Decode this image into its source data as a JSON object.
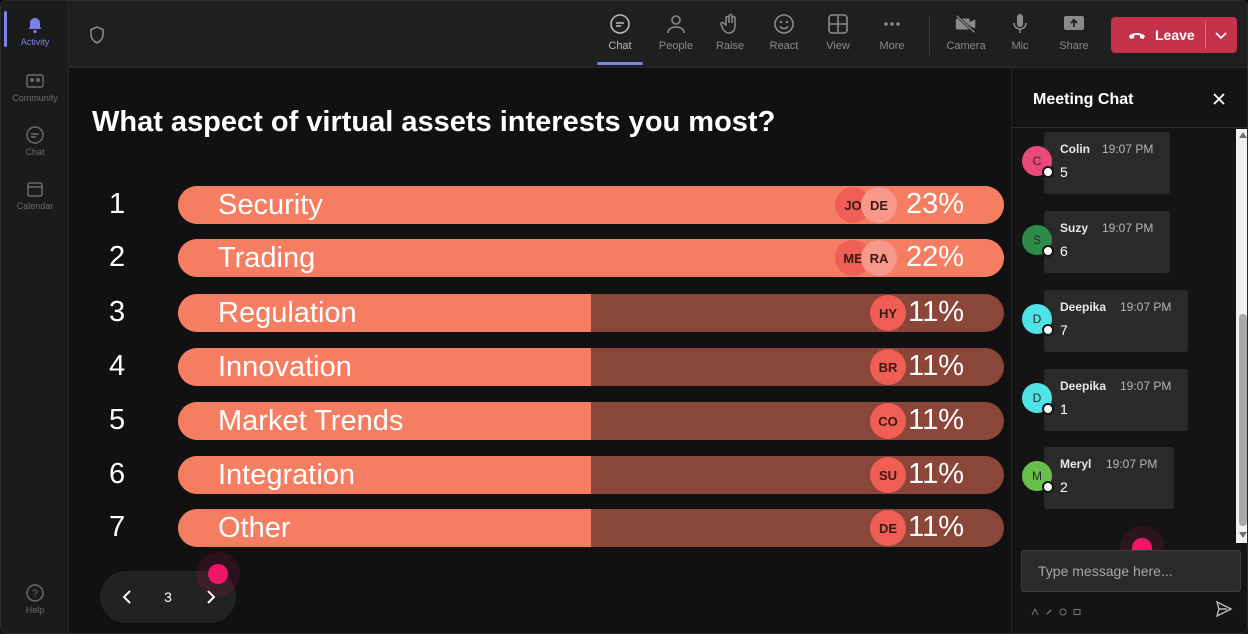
{
  "rail": {
    "items": [
      {
        "label": "Activity",
        "icon": "bell-icon",
        "active": true
      },
      {
        "label": "Community",
        "icon": "community-icon",
        "active": false
      },
      {
        "label": "Chat",
        "icon": "chat-icon",
        "active": false
      },
      {
        "label": "Calendar",
        "icon": "calendar-icon",
        "active": false
      }
    ],
    "help_label": "Help"
  },
  "toolbar": {
    "chat": "Chat",
    "people": "People",
    "raise": "Raise",
    "react": "React",
    "view": "View",
    "more": "More",
    "camera": "Camera",
    "mic": "Mic",
    "share": "Share",
    "leave": "Leave"
  },
  "poll": {
    "question": "What aspect of virtual assets interests you most?",
    "options": [
      {
        "num": "1",
        "label": "Security",
        "percent": "23%",
        "fill": 1.0,
        "avatars": [
          "JO",
          "DE"
        ]
      },
      {
        "num": "2",
        "label": "Trading",
        "percent": "22%",
        "fill": 1.0,
        "avatars": [
          "ME",
          "RA"
        ]
      },
      {
        "num": "3",
        "label": "Regulation",
        "percent": "11%",
        "fill": 0.5,
        "avatars": [
          "HY"
        ]
      },
      {
        "num": "4",
        "label": "Innovation",
        "percent": "11%",
        "fill": 0.5,
        "avatars": [
          "BR"
        ]
      },
      {
        "num": "5",
        "label": "Market Trends",
        "percent": "11%",
        "fill": 0.5,
        "avatars": [
          "CO"
        ]
      },
      {
        "num": "6",
        "label": "Integration",
        "percent": "11%",
        "fill": 0.5,
        "avatars": [
          "SU"
        ]
      },
      {
        "num": "7",
        "label": "Other",
        "percent": "11%",
        "fill": 0.5,
        "avatars": [
          "DE"
        ]
      }
    ],
    "page": "3"
  },
  "chat": {
    "title": "Meeting Chat",
    "messages": [
      {
        "initial": "C",
        "name": "Colin",
        "time": "19:07 PM",
        "text": "5",
        "color": "#e8487a"
      },
      {
        "initial": "S",
        "name": "Suzy",
        "time": "19:07 PM",
        "text": "6",
        "color": "#2e8b47"
      },
      {
        "initial": "D",
        "name": "Deepika",
        "time": "19:07 PM",
        "text": "7",
        "color": "#4fe3e8"
      },
      {
        "initial": "D",
        "name": "Deepika",
        "time": "19:07 PM",
        "text": "1",
        "color": "#4fe3e8"
      },
      {
        "initial": "M",
        "name": "Meryl",
        "time": "19:07 PM",
        "text": "2",
        "color": "#6abf4b"
      }
    ],
    "input_placeholder": "Type message here..."
  },
  "colors": {
    "accent": "#7b83eb",
    "bar_fill": "#f57e62",
    "bar_track": "#8a4638",
    "leave": "#c4314b",
    "cursor": "#ee1767"
  }
}
